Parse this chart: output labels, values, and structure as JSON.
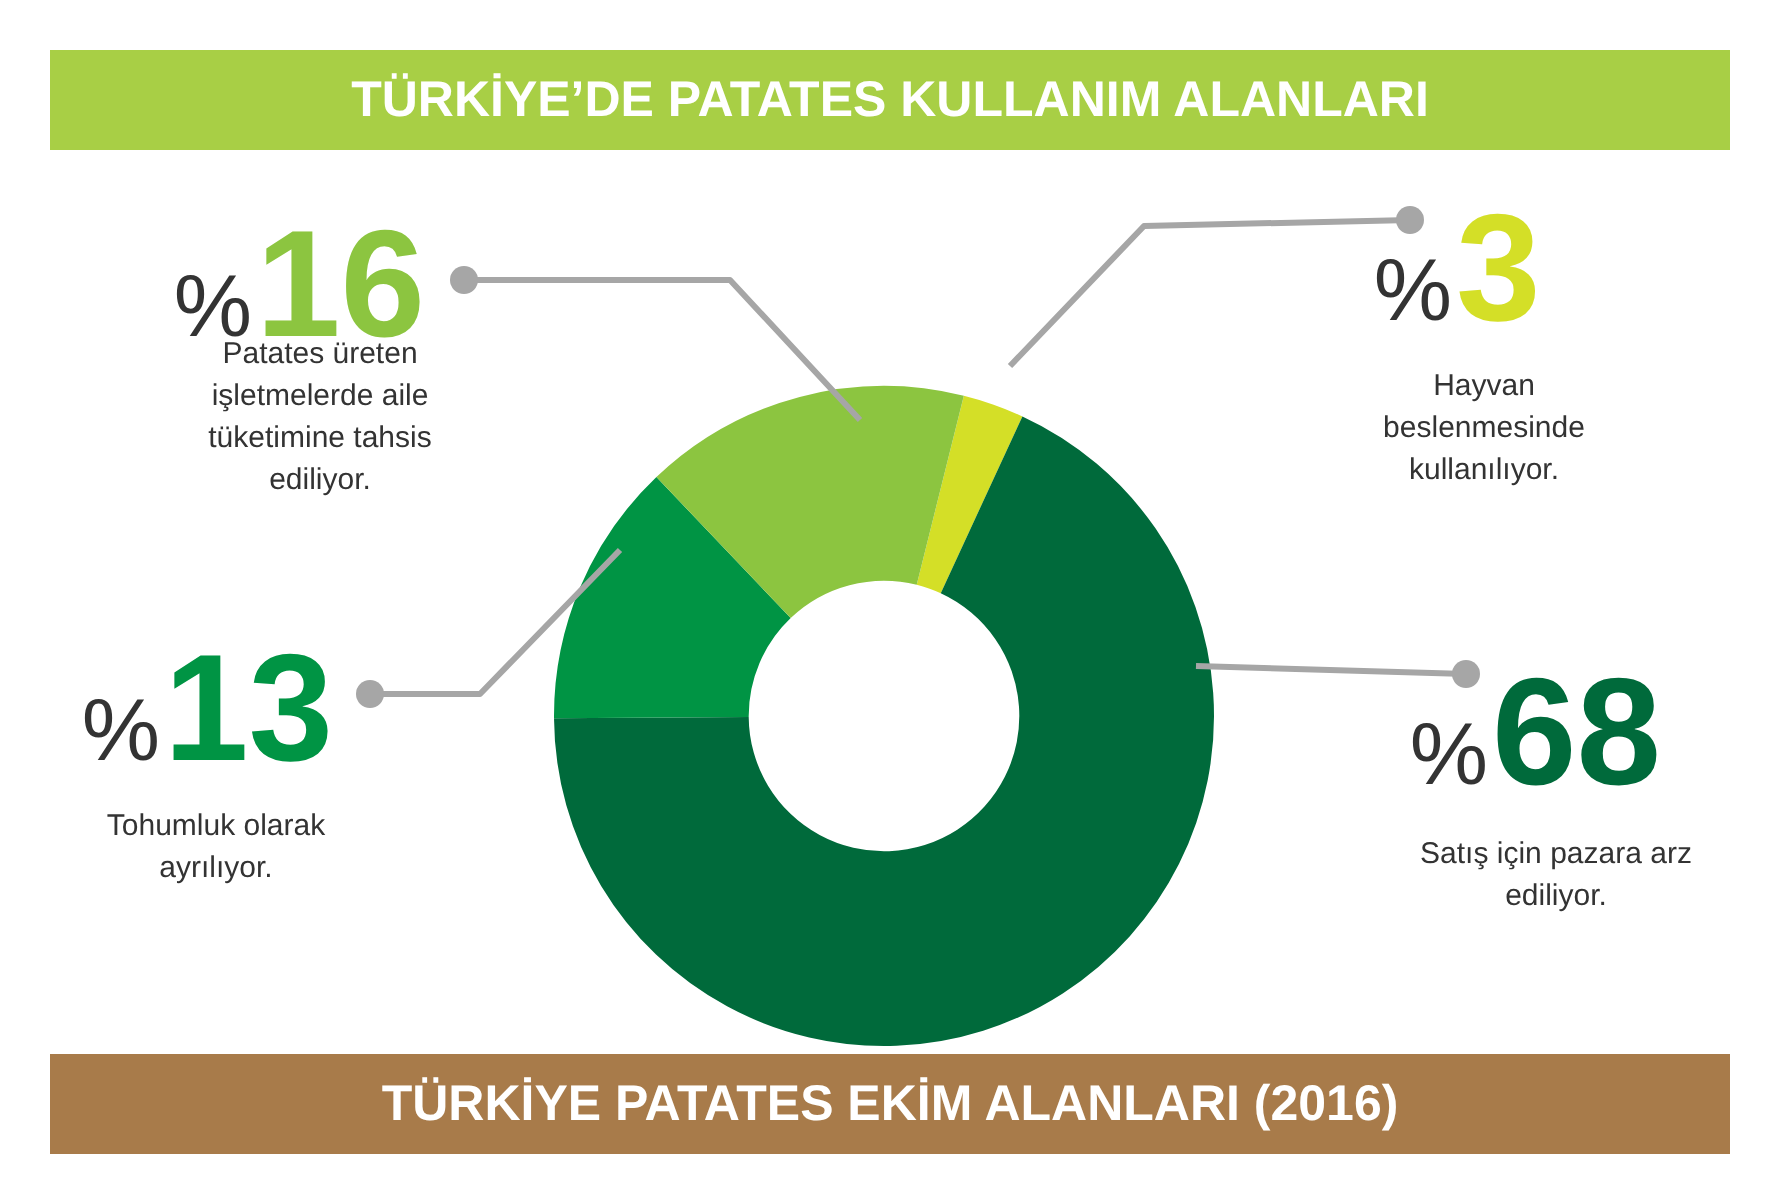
{
  "chart_data": {
    "type": "donut",
    "title": "TÜRKİYE’DE PATATES KULLANIM ALANLARI",
    "categories": [
      "Hayvan beslenmesinde kullanılıyor.",
      "Satış için pazara arz ediliyor.",
      "Tohumluk olarak ayrılıyor.",
      "Patates üreten işletmelerde aile tüketimine tahsis ediliyor."
    ],
    "values": [
      3,
      68,
      13,
      16
    ],
    "value_labels": [
      "%3",
      "%68",
      "%13",
      "%16"
    ],
    "colors": [
      "#d4df27",
      "#006a3b",
      "#009444",
      "#8cc540"
    ],
    "legend": false,
    "annotations": [
      "TÜRKİYE PATATES EKİM ALANLARI (2016)"
    ]
  }
}
